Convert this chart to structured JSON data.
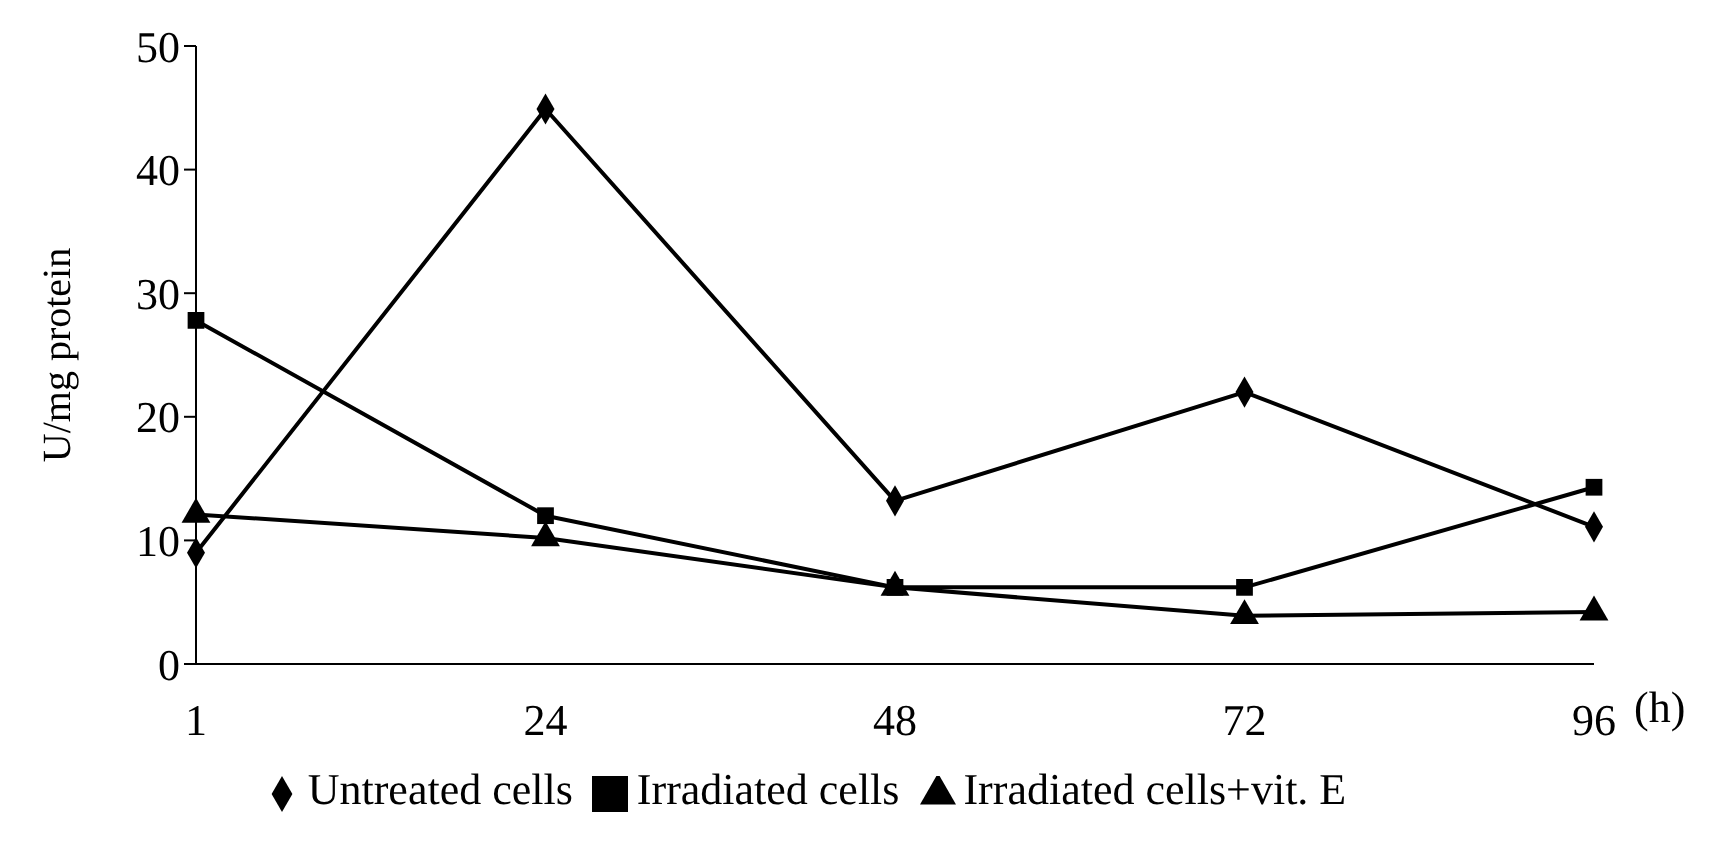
{
  "chart_data": {
    "type": "line",
    "ylabel": "U/mg protein",
    "xlabel": "(h)",
    "categories": [
      "1",
      "24",
      "48",
      "72",
      "96"
    ],
    "ylim": [
      0,
      50
    ],
    "yticks": [
      0,
      10,
      20,
      30,
      40,
      50
    ],
    "grid": false,
    "legend": "bottom",
    "line_style": "solid",
    "series": [
      {
        "name": "Untreated cells",
        "color": "#000000",
        "marker": "diamond",
        "values": [
          9,
          44.9,
          13.2,
          22,
          11.1
        ]
      },
      {
        "name": "Irradiated cells",
        "color": "#000000",
        "marker": "square",
        "values": [
          27.8,
          12,
          6.2,
          6.2,
          14.3
        ]
      },
      {
        "name": "Irradiated cells+vit. E",
        "color": "#000000",
        "marker": "triangle",
        "values": [
          12.1,
          10.2,
          6.2,
          3.9,
          4.2
        ]
      }
    ]
  }
}
